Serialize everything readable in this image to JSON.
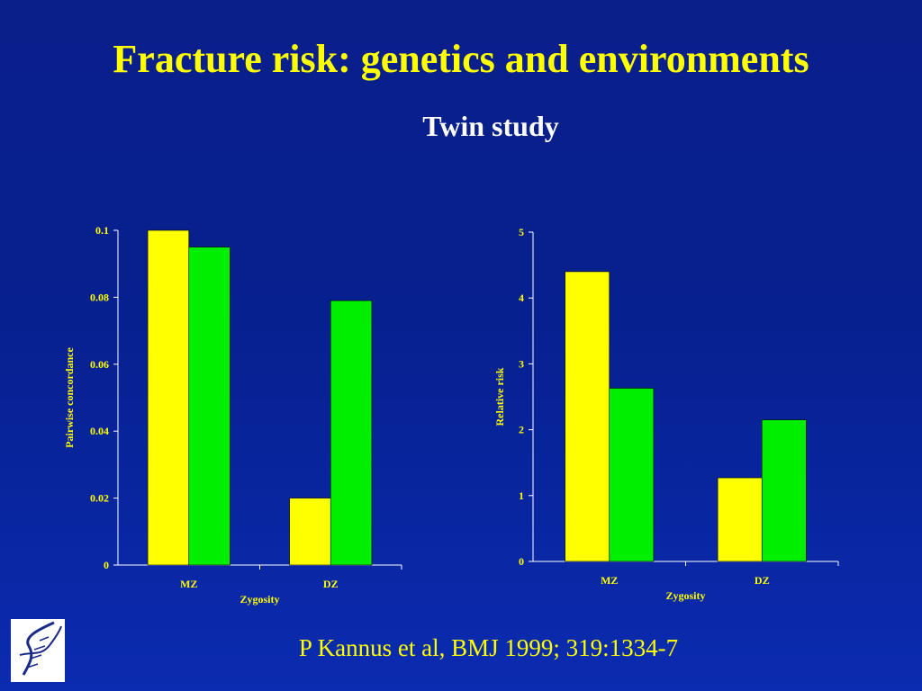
{
  "slide": {
    "title": "Fracture risk: genetics and environments",
    "subtitle": "Twin study",
    "citation": "P Kannus et al, BMJ 1999; 319:1334-7"
  },
  "colors": {
    "background": "#0a1f8a",
    "series_1": "#ffff00",
    "series_2": "#00ee00",
    "text": "#ffff00"
  },
  "logo": {
    "icon": "dna-helix-logo-icon"
  },
  "chart_data": [
    {
      "type": "bar",
      "categories": [
        "MZ",
        "DZ"
      ],
      "series": [
        {
          "color": "#ffff00",
          "values": [
            0.1,
            0.02
          ]
        },
        {
          "color": "#00ee00",
          "values": [
            0.095,
            0.079
          ]
        }
      ],
      "xlabel": "Zygosity",
      "ylabel": "Pairwise concordance",
      "ylim": [
        0,
        0.1
      ],
      "yticks": [
        "0",
        "0.02",
        "0.04",
        "0.06",
        "0.08",
        "0.1"
      ],
      "ytick_values": [
        0,
        0.02,
        0.04,
        0.06,
        0.08,
        0.1
      ],
      "grid": false,
      "legend": "none"
    },
    {
      "type": "bar",
      "categories": [
        "MZ",
        "DZ"
      ],
      "series": [
        {
          "color": "#ffff00",
          "values": [
            4.4,
            1.27
          ]
        },
        {
          "color": "#00ee00",
          "values": [
            2.63,
            2.15
          ]
        }
      ],
      "xlabel": "Zygosity",
      "ylabel": "Relative risk",
      "ylim": [
        0,
        5
      ],
      "yticks": [
        "0",
        "1",
        "2",
        "3",
        "4",
        "5"
      ],
      "ytick_values": [
        0,
        1,
        2,
        3,
        4,
        5
      ],
      "grid": false,
      "legend": "none"
    }
  ]
}
